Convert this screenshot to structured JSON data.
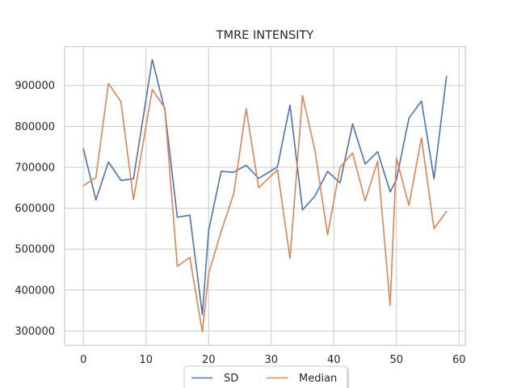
{
  "chart_data": {
    "type": "line",
    "title": "TMRE INTENSITY",
    "xlabel": "",
    "ylabel": "",
    "xlim": [
      -3,
      61
    ],
    "ylim": [
      265000,
      995000
    ],
    "xticks": [
      0,
      10,
      20,
      30,
      40,
      50,
      60
    ],
    "yticks": [
      300000,
      400000,
      500000,
      600000,
      700000,
      800000,
      900000
    ],
    "grid": true,
    "legend_position": "bottom-center",
    "series": [
      {
        "name": "SD",
        "color": "#4c72b0",
        "x": [
          0,
          2,
          4,
          6,
          8,
          11,
          13,
          15,
          17,
          19,
          20,
          22,
          24,
          26,
          28,
          31,
          33,
          35,
          37,
          39,
          41,
          43,
          45,
          47,
          49,
          50,
          52,
          54,
          56,
          58
        ],
        "y": [
          745000,
          620000,
          713000,
          668000,
          672000,
          963000,
          840000,
          578000,
          583000,
          340000,
          545000,
          690000,
          688000,
          705000,
          673000,
          701000,
          852000,
          596000,
          630000,
          690000,
          662000,
          806000,
          708000,
          738000,
          640000,
          670000,
          820000,
          862000,
          672000,
          922000
        ]
      },
      {
        "name": "Median",
        "color": "#dd8452",
        "x": [
          0,
          2,
          4,
          6,
          8,
          11,
          13,
          15,
          17,
          19,
          20,
          22,
          24,
          26,
          28,
          31,
          33,
          35,
          37,
          39,
          41,
          43,
          45,
          47,
          49,
          50,
          52,
          54,
          56,
          58
        ],
        "y": [
          655000,
          675000,
          905000,
          860000,
          621000,
          890000,
          845000,
          458000,
          480000,
          298000,
          440000,
          543000,
          635000,
          843000,
          650000,
          694000,
          477000,
          875000,
          740000,
          535000,
          700000,
          735000,
          618000,
          715000,
          362000,
          722000,
          607000,
          772000,
          550000,
          592000
        ]
      }
    ]
  }
}
